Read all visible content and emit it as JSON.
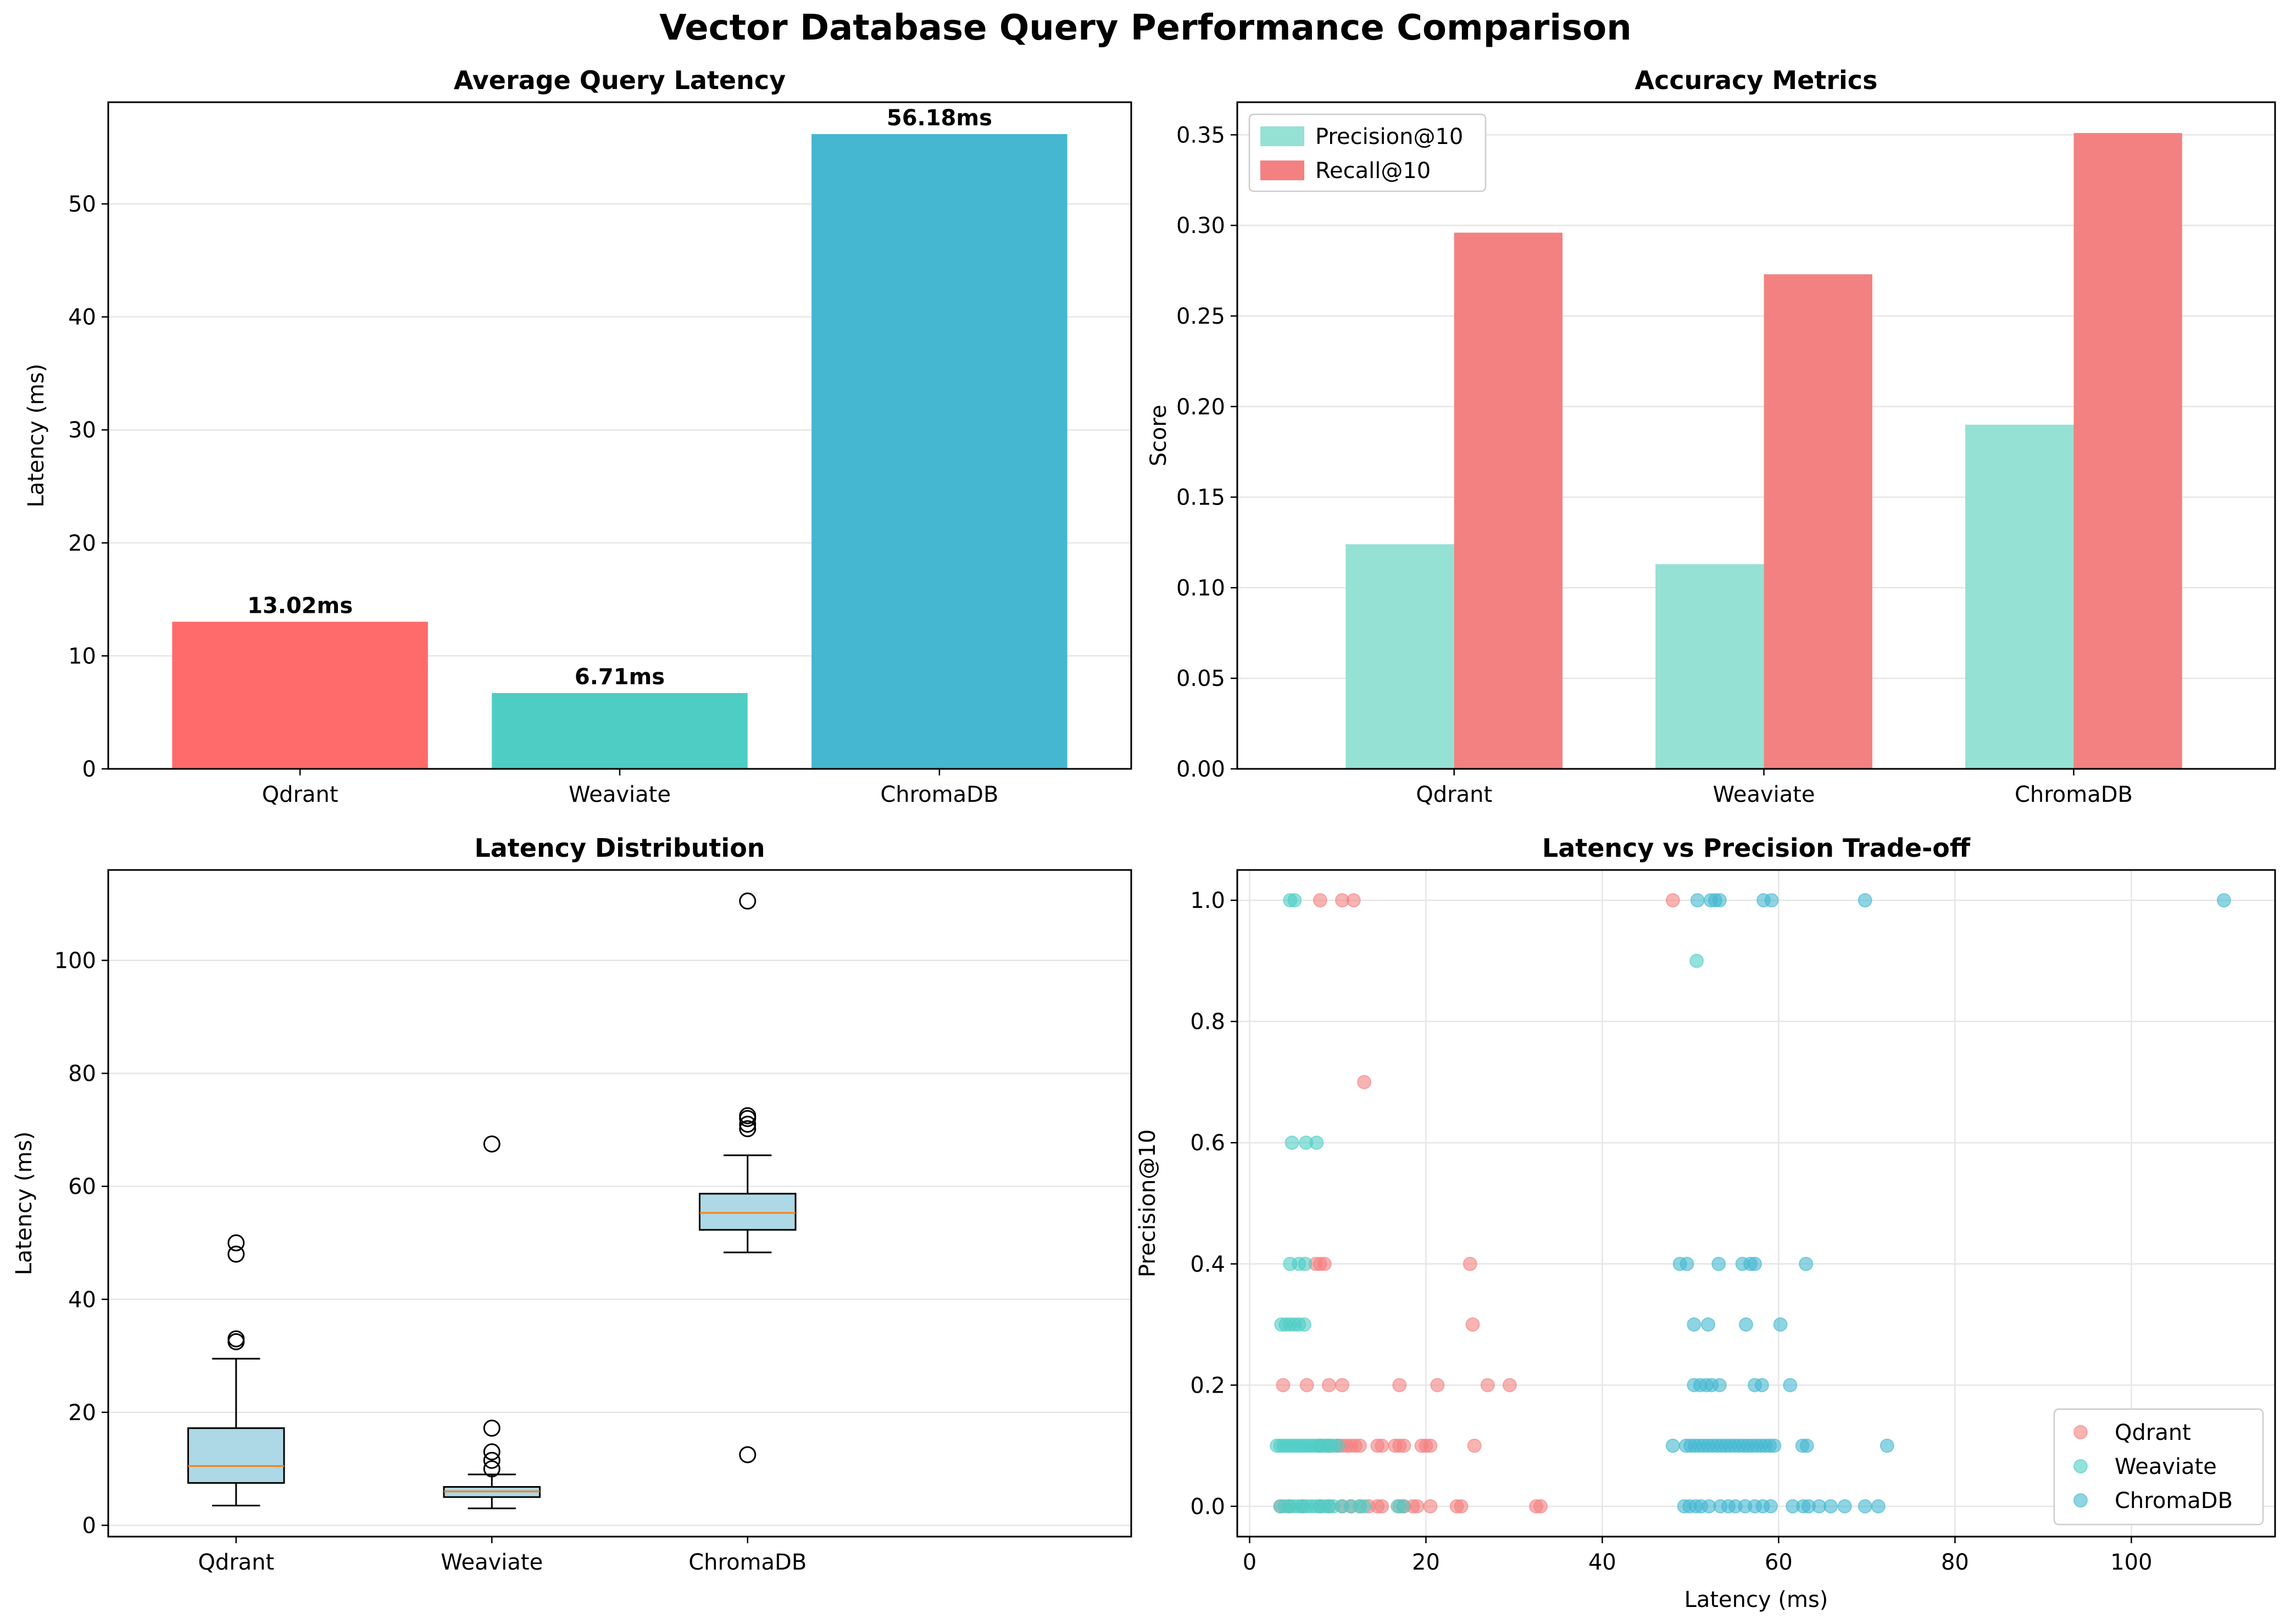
{
  "suptitle": "Vector Database Query Performance Comparison",
  "chart_data": [
    {
      "type": "bar",
      "title": "Average Query Latency",
      "xlabel": "",
      "ylabel": "Latency (ms)",
      "categories": [
        "Qdrant",
        "Weaviate",
        "ChromaDB"
      ],
      "values": [
        13.02,
        6.71,
        56.18
      ],
      "value_labels": [
        "13.02ms",
        "6.71ms",
        "56.18ms"
      ],
      "colors": [
        "#ff6b6b",
        "#4ecdc4",
        "#45b7d1"
      ],
      "ylim": [
        0,
        59
      ],
      "yticks": [
        0,
        10,
        20,
        30,
        40,
        50
      ],
      "grid": "y"
    },
    {
      "type": "bar",
      "title": "Accuracy Metrics",
      "xlabel": "",
      "ylabel": "Score",
      "categories": [
        "Qdrant",
        "Weaviate",
        "ChromaDB"
      ],
      "series": [
        {
          "name": "Precision@10",
          "values": [
            0.124,
            0.113,
            0.19
          ],
          "color": "#95e1d3"
        },
        {
          "name": "Recall@10",
          "values": [
            0.296,
            0.273,
            0.351
          ],
          "color": "#f38181"
        }
      ],
      "ylim": [
        0,
        0.368
      ],
      "yticks": [
        0.0,
        0.05,
        0.1,
        0.15,
        0.2,
        0.25,
        0.3,
        0.35
      ],
      "ytick_labels": [
        "0.00",
        "0.05",
        "0.10",
        "0.15",
        "0.20",
        "0.25",
        "0.30",
        "0.35"
      ],
      "legend": "top-left",
      "grid": "y"
    },
    {
      "type": "box",
      "title": "Latency Distribution",
      "xlabel": "",
      "ylabel": "Latency (ms)",
      "categories": [
        "Qdrant",
        "Weaviate",
        "ChromaDB"
      ],
      "boxes": [
        {
          "q1": 7.5,
          "median": 10.5,
          "q3": 17.2,
          "whisker_low": 3.5,
          "whisker_high": 29.5,
          "outliers": [
            32.5,
            33.0,
            48.0,
            50.0
          ]
        },
        {
          "q1": 5.0,
          "median": 6.0,
          "q3": 6.8,
          "whisker_low": 3.0,
          "whisker_high": 9.0,
          "outliers": [
            10.0,
            11.5,
            13.0,
            17.2,
            67.5
          ]
        },
        {
          "q1": 52.3,
          "median": 55.3,
          "q3": 58.7,
          "whisker_low": 48.3,
          "whisker_high": 65.5,
          "outliers": [
            12.5,
            70.2,
            71.0,
            72.0,
            72.5,
            110.5
          ]
        }
      ],
      "box_color": "#add8e6",
      "median_color": "#ff7f0e",
      "ylim": [
        -2,
        116
      ],
      "yticks": [
        0,
        20,
        40,
        60,
        80,
        100
      ],
      "grid": "y"
    },
    {
      "type": "scatter",
      "title": "Latency vs Precision Trade-off",
      "xlabel": "Latency (ms)",
      "ylabel": "Precision@10",
      "xlim": [
        -1.4,
        116.3
      ],
      "ylim": [
        -0.05,
        1.05
      ],
      "xticks": [
        0,
        20,
        40,
        60,
        80,
        100
      ],
      "yticks": [
        0.0,
        0.2,
        0.4,
        0.6,
        0.8,
        1.0
      ],
      "ytick_labels": [
        "0.0",
        "0.2",
        "0.4",
        "0.6",
        "0.8",
        "1.0"
      ],
      "legend": "bottom-right",
      "grid": "both",
      "series": [
        {
          "name": "Qdrant",
          "color": "#f38181",
          "points": [
            [
              8,
              1.0
            ],
            [
              10.5,
              1.0
            ],
            [
              11.8,
              1.0
            ],
            [
              48,
              1.0
            ],
            [
              13,
              0.7
            ],
            [
              7.5,
              0.4
            ],
            [
              8,
              0.4
            ],
            [
              8.5,
              0.4
            ],
            [
              25,
              0.4
            ],
            [
              25.3,
              0.3
            ],
            [
              3.8,
              0.2
            ],
            [
              6.5,
              0.2
            ],
            [
              9,
              0.2
            ],
            [
              10.5,
              0.2
            ],
            [
              17,
              0.2
            ],
            [
              21.3,
              0.2
            ],
            [
              27,
              0.2
            ],
            [
              29.5,
              0.2
            ],
            [
              8,
              0.1
            ],
            [
              9,
              0.1
            ],
            [
              10,
              0.1
            ],
            [
              10.5,
              0.1
            ],
            [
              11,
              0.1
            ],
            [
              11.5,
              0.1
            ],
            [
              12,
              0.1
            ],
            [
              12.5,
              0.1
            ],
            [
              14.5,
              0.1
            ],
            [
              15,
              0.1
            ],
            [
              16.5,
              0.1
            ],
            [
              17,
              0.1
            ],
            [
              17.5,
              0.1
            ],
            [
              19.5,
              0.1
            ],
            [
              20,
              0.1
            ],
            [
              20.5,
              0.1
            ],
            [
              25.5,
              0.1
            ],
            [
              3.5,
              0.0
            ],
            [
              4.5,
              0.0
            ],
            [
              6,
              0.0
            ],
            [
              8,
              0.0
            ],
            [
              9,
              0.0
            ],
            [
              10.5,
              0.0
            ],
            [
              11.5,
              0.0
            ],
            [
              12.5,
              0.0
            ],
            [
              13.5,
              0.0
            ],
            [
              14.5,
              0.0
            ],
            [
              15,
              0.0
            ],
            [
              17,
              0.0
            ],
            [
              17.5,
              0.0
            ],
            [
              18.5,
              0.0
            ],
            [
              19,
              0.0
            ],
            [
              20.5,
              0.0
            ],
            [
              23.5,
              0.0
            ],
            [
              24,
              0.0
            ],
            [
              32.5,
              0.0
            ],
            [
              33,
              0.0
            ]
          ]
        },
        {
          "name": "Weaviate",
          "color": "#4ecdc4",
          "points": [
            [
              4.6,
              1.0
            ],
            [
              5.1,
              1.0
            ],
            [
              50.7,
              0.9
            ],
            [
              4.8,
              0.6
            ],
            [
              6.4,
              0.6
            ],
            [
              7.6,
              0.6
            ],
            [
              4.6,
              0.4
            ],
            [
              5.6,
              0.4
            ],
            [
              6.3,
              0.4
            ],
            [
              3.6,
              0.3
            ],
            [
              4.1,
              0.3
            ],
            [
              4.6,
              0.3
            ],
            [
              5.1,
              0.3
            ],
            [
              5.6,
              0.3
            ],
            [
              6.2,
              0.3
            ],
            [
              3.1,
              0.1
            ],
            [
              3.5,
              0.1
            ],
            [
              3.9,
              0.1
            ],
            [
              4.3,
              0.1
            ],
            [
              4.7,
              0.1
            ],
            [
              5.1,
              0.1
            ],
            [
              5.5,
              0.1
            ],
            [
              5.9,
              0.1
            ],
            [
              6.3,
              0.1
            ],
            [
              6.7,
              0.1
            ],
            [
              7.1,
              0.1
            ],
            [
              7.5,
              0.1
            ],
            [
              7.9,
              0.1
            ],
            [
              8.3,
              0.1
            ],
            [
              8.7,
              0.1
            ],
            [
              9.1,
              0.1
            ],
            [
              9.5,
              0.1
            ],
            [
              10,
              0.1
            ],
            [
              3.5,
              0.0
            ],
            [
              4,
              0.0
            ],
            [
              4.5,
              0.0
            ],
            [
              5,
              0.0
            ],
            [
              5.5,
              0.0
            ],
            [
              6,
              0.0
            ],
            [
              6.5,
              0.0
            ],
            [
              7,
              0.0
            ],
            [
              7.5,
              0.0
            ],
            [
              8,
              0.0
            ],
            [
              8.5,
              0.0
            ],
            [
              9,
              0.0
            ],
            [
              9.5,
              0.0
            ],
            [
              10.5,
              0.0
            ],
            [
              11.5,
              0.0
            ],
            [
              12.5,
              0.0
            ],
            [
              13,
              0.0
            ],
            [
              16.8,
              0.0
            ],
            [
              17.4,
              0.0
            ]
          ]
        },
        {
          "name": "ChromaDB",
          "color": "#45b7d1",
          "points": [
            [
              50.8,
              1.0
            ],
            [
              52.3,
              1.0
            ],
            [
              52.8,
              1.0
            ],
            [
              53.3,
              1.0
            ],
            [
              58.3,
              1.0
            ],
            [
              59.2,
              1.0
            ],
            [
              69.8,
              1.0
            ],
            [
              110.5,
              1.0
            ],
            [
              48.8,
              0.4
            ],
            [
              49.6,
              0.4
            ],
            [
              53.2,
              0.4
            ],
            [
              55.9,
              0.4
            ],
            [
              56.8,
              0.4
            ],
            [
              57.3,
              0.4
            ],
            [
              63.1,
              0.4
            ],
            [
              50.4,
              0.3
            ],
            [
              52,
              0.3
            ],
            [
              56.3,
              0.3
            ],
            [
              60.2,
              0.3
            ],
            [
              50.4,
              0.2
            ],
            [
              51.1,
              0.2
            ],
            [
              51.8,
              0.2
            ],
            [
              52.4,
              0.2
            ],
            [
              53.3,
              0.2
            ],
            [
              57.3,
              0.2
            ],
            [
              58.1,
              0.2
            ],
            [
              61.3,
              0.2
            ],
            [
              48,
              0.1
            ],
            [
              49.5,
              0.1
            ],
            [
              50,
              0.1
            ],
            [
              50.5,
              0.1
            ],
            [
              51,
              0.1
            ],
            [
              51.5,
              0.1
            ],
            [
              52,
              0.1
            ],
            [
              52.5,
              0.1
            ],
            [
              53,
              0.1
            ],
            [
              53.5,
              0.1
            ],
            [
              54,
              0.1
            ],
            [
              54.5,
              0.1
            ],
            [
              55,
              0.1
            ],
            [
              55.5,
              0.1
            ],
            [
              56,
              0.1
            ],
            [
              56.5,
              0.1
            ],
            [
              57,
              0.1
            ],
            [
              57.5,
              0.1
            ],
            [
              58,
              0.1
            ],
            [
              58.5,
              0.1
            ],
            [
              59,
              0.1
            ],
            [
              59.5,
              0.1
            ],
            [
              62.7,
              0.1
            ],
            [
              63.2,
              0.1
            ],
            [
              72.3,
              0.1
            ],
            [
              49.3,
              0.0
            ],
            [
              49.9,
              0.0
            ],
            [
              50.6,
              0.0
            ],
            [
              51.2,
              0.0
            ],
            [
              52.1,
              0.0
            ],
            [
              53.4,
              0.0
            ],
            [
              54.3,
              0.0
            ],
            [
              55.1,
              0.0
            ],
            [
              56.2,
              0.0
            ],
            [
              57.3,
              0.0
            ],
            [
              58.2,
              0.0
            ],
            [
              59.1,
              0.0
            ],
            [
              61.6,
              0.0
            ],
            [
              62.8,
              0.0
            ],
            [
              63.4,
              0.0
            ],
            [
              64.6,
              0.0
            ],
            [
              65.9,
              0.0
            ],
            [
              67.5,
              0.0
            ],
            [
              69.8,
              0.0
            ],
            [
              71.3,
              0.0
            ]
          ]
        }
      ]
    }
  ]
}
